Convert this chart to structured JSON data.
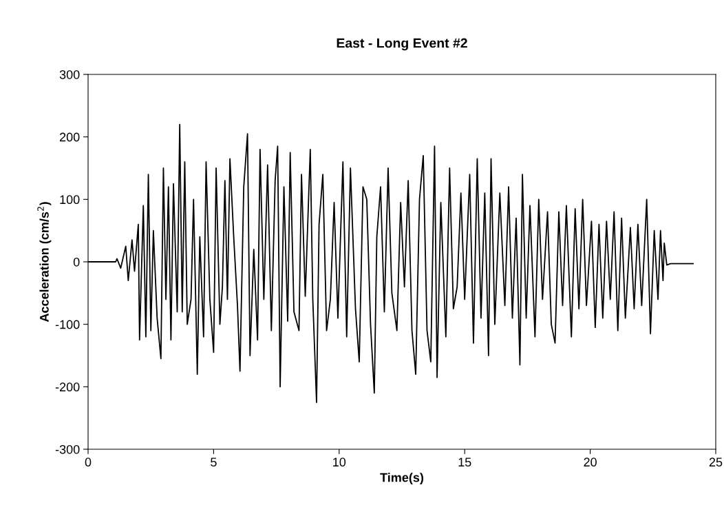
{
  "chart_data": {
    "type": "line",
    "title": "East - Long Event #2",
    "xlabel": "Time(s)",
    "ylabel": "Acceleration (cm/s$^{2}$)",
    "xlim": [
      0,
      25
    ],
    "xticks": [
      0,
      5,
      10,
      15,
      20,
      25
    ],
    "ylim": [
      -300,
      300
    ],
    "yticks": [
      -300,
      -200,
      -100,
      0,
      100,
      200,
      300
    ],
    "grid": false,
    "marker": "none",
    "line_style": "solid",
    "series": [
      {
        "color": "#000000",
        "x": [
          0,
          1.1,
          1.15,
          1.3,
          1.5,
          1.6,
          1.75,
          1.85,
          2.0,
          2.05,
          2.2,
          2.3,
          2.4,
          2.5,
          2.6,
          2.75,
          2.9,
          3.0,
          3.1,
          3.2,
          3.3,
          3.4,
          3.55,
          3.65,
          3.75,
          3.85,
          3.95,
          4.1,
          4.2,
          4.35,
          4.45,
          4.6,
          4.7,
          4.85,
          5.0,
          5.1,
          5.25,
          5.35,
          5.45,
          5.55,
          5.65,
          5.8,
          5.95,
          6.05,
          6.2,
          6.35,
          6.45,
          6.6,
          6.75,
          6.85,
          7.0,
          7.15,
          7.3,
          7.45,
          7.55,
          7.65,
          7.8,
          7.95,
          8.05,
          8.2,
          8.4,
          8.5,
          8.65,
          8.85,
          8.95,
          9.1,
          9.2,
          9.35,
          9.5,
          9.65,
          9.8,
          9.95,
          10.15,
          10.3,
          10.45,
          10.65,
          10.8,
          10.95,
          11.1,
          11.25,
          11.4,
          11.5,
          11.65,
          11.8,
          11.95,
          12.1,
          12.3,
          12.45,
          12.6,
          12.75,
          12.9,
          13.05,
          13.2,
          13.35,
          13.5,
          13.65,
          13.8,
          13.9,
          14.05,
          14.25,
          14.4,
          14.55,
          14.7,
          14.85,
          15.0,
          15.2,
          15.35,
          15.5,
          15.65,
          15.8,
          15.95,
          16.05,
          16.2,
          16.4,
          16.6,
          16.75,
          16.9,
          17.05,
          17.2,
          17.3,
          17.45,
          17.6,
          17.8,
          17.95,
          18.1,
          18.3,
          18.45,
          18.6,
          18.75,
          18.9,
          19.05,
          19.25,
          19.4,
          19.55,
          19.7,
          19.85,
          20.05,
          20.2,
          20.35,
          20.5,
          20.65,
          20.8,
          20.95,
          21.1,
          21.25,
          21.4,
          21.6,
          21.75,
          21.9,
          22.05,
          22.25,
          22.4,
          22.55,
          22.7,
          22.8,
          22.9,
          22.95,
          23.05,
          23.2,
          24.1
        ],
        "values": [
          0,
          0,
          5,
          -10,
          25,
          -30,
          35,
          -15,
          60,
          -125,
          90,
          -120,
          140,
          -110,
          50,
          -90,
          -155,
          150,
          -60,
          120,
          -125,
          125,
          -80,
          220,
          -80,
          160,
          -100,
          -60,
          100,
          -180,
          40,
          -120,
          160,
          -60,
          -145,
          150,
          -100,
          -40,
          130,
          -60,
          165,
          40,
          -70,
          -175,
          120,
          205,
          -150,
          20,
          -125,
          180,
          -60,
          155,
          -110,
          130,
          185,
          -200,
          120,
          -95,
          175,
          -80,
          -110,
          140,
          -55,
          180,
          -60,
          -225,
          60,
          140,
          -110,
          -60,
          95,
          -90,
          160,
          -120,
          150,
          -75,
          -160,
          120,
          100,
          -100,
          -210,
          40,
          120,
          -80,
          150,
          -50,
          -110,
          95,
          -40,
          130,
          -110,
          -180,
          100,
          170,
          -110,
          -160,
          185,
          -185,
          95,
          -120,
          150,
          -75,
          -40,
          110,
          -60,
          140,
          -130,
          165,
          -90,
          110,
          -150,
          165,
          -100,
          110,
          -70,
          120,
          -90,
          70,
          -165,
          140,
          -90,
          90,
          -120,
          100,
          -60,
          80,
          -100,
          -130,
          80,
          -70,
          90,
          -120,
          85,
          -75,
          100,
          -70,
          65,
          -105,
          60,
          -90,
          65,
          -60,
          80,
          -110,
          70,
          -90,
          55,
          -75,
          60,
          -70,
          100,
          -115,
          50,
          -60,
          50,
          -30,
          30,
          -5,
          -3,
          -3
        ]
      }
    ]
  }
}
